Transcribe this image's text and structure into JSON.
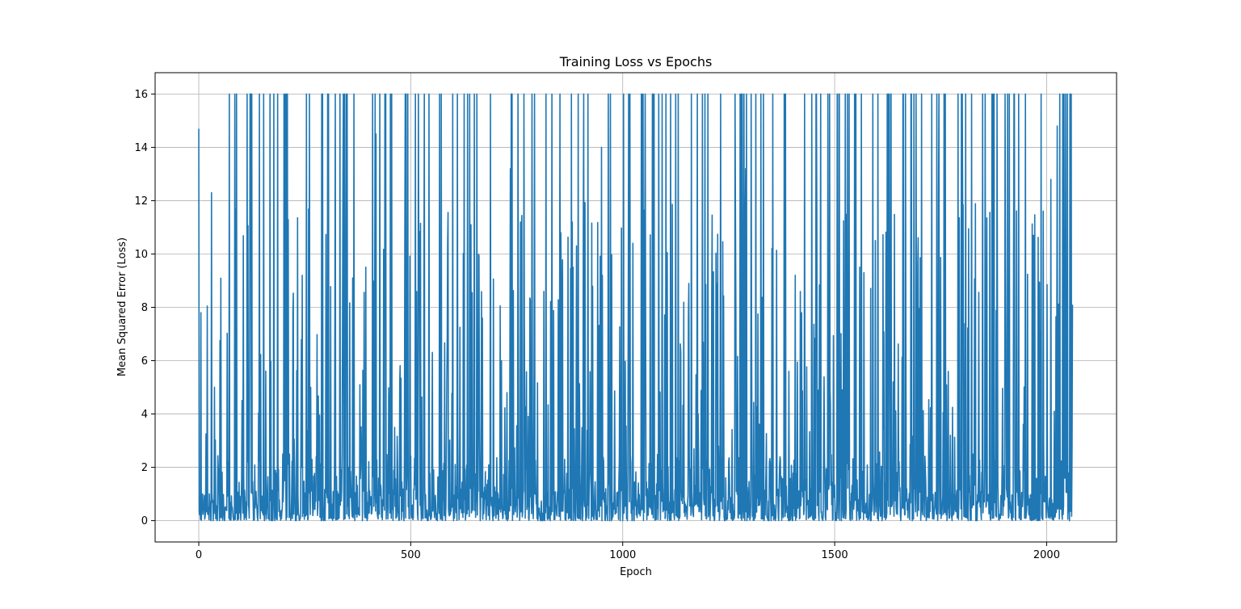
{
  "chart_data": {
    "type": "line",
    "title": "Training Loss vs Epochs",
    "xlabel": "Epoch",
    "ylabel": "Mean Squared Error (Loss)",
    "xlim": [
      -103,
      2165
    ],
    "ylim": [
      -0.8,
      16.8
    ],
    "xticks": [
      0,
      500,
      1000,
      1500,
      2000
    ],
    "yticks": [
      0,
      2,
      4,
      6,
      8,
      10,
      12,
      14,
      16
    ],
    "grid": true,
    "legend": false,
    "series": [
      {
        "color": "#1f77b4",
        "x_start": 0,
        "x_step": 1,
        "y_range": [
          0,
          16
        ],
        "y_max": 16,
        "n_points": 2062,
        "highlight_values": [
          {
            "epoch": 0,
            "loss": 14.7
          },
          {
            "epoch": 5,
            "loss": 7.8
          },
          {
            "epoch": 30,
            "loss": 12.3
          },
          {
            "epoch": 120,
            "loss": 7.4
          },
          {
            "epoch": 340,
            "loss": 12.6
          },
          {
            "epoch": 418,
            "loss": 14.5
          },
          {
            "epoch": 735,
            "loss": 13.2
          },
          {
            "epoch": 950,
            "loss": 14.0
          },
          {
            "epoch": 1290,
            "loss": 13.2
          },
          {
            "epoch": 2010,
            "loss": 12.8
          },
          {
            "epoch": 2025,
            "loss": 14.8
          },
          {
            "epoch": 2061,
            "loss": 8.1
          }
        ]
      }
    ]
  }
}
